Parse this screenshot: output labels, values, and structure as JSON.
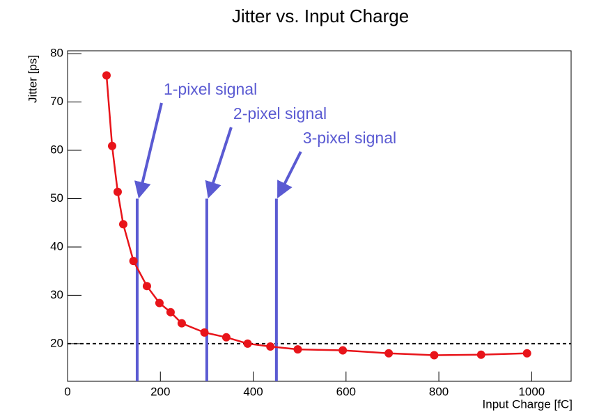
{
  "chart_data": {
    "type": "line",
    "title": "Jitter vs. Input Charge",
    "x_label": "Input Charge [fC]",
    "y_label": "Jitter [ps]",
    "x": [
      84,
      96,
      108,
      120,
      142,
      171,
      198,
      222,
      246,
      295,
      342,
      388,
      437,
      496,
      593,
      692,
      790,
      891,
      990
    ],
    "series": [
      {
        "name": "Jitter",
        "color": "#e8141a",
        "values": [
          75.5,
          60.9,
          51.4,
          44.7,
          37.1,
          31.9,
          28.4,
          26.5,
          24.2,
          22.3,
          21.3,
          20.0,
          19.4,
          18.8,
          18.6,
          18.0,
          17.6,
          17.7,
          18.0
        ]
      }
    ],
    "xlim": [
      0,
      1085
    ],
    "ylim": [
      12.2,
      80.6
    ],
    "xticks": [
      0,
      200,
      400,
      600,
      800,
      1000
    ],
    "yticks": [
      20,
      30,
      40,
      50,
      60,
      70,
      80
    ],
    "reference_line": {
      "y": 20,
      "color": "#000000"
    },
    "markers": [
      {
        "x": 150,
        "top": 50,
        "label": "1-pixel signal"
      },
      {
        "x": 300,
        "top": 50,
        "label": "2-pixel signal"
      },
      {
        "x": 450,
        "top": 50,
        "label": "3-pixel signal"
      }
    ],
    "marker_color": "#5a5ad2"
  }
}
